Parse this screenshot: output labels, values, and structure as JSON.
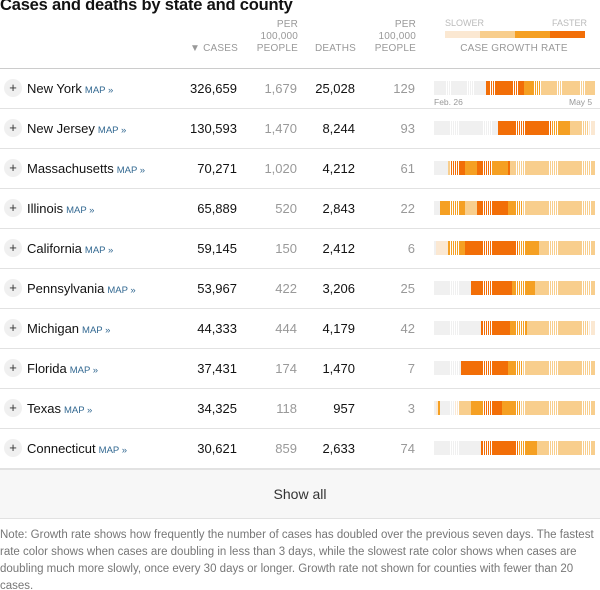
{
  "title": "Cases and deaths by state and county",
  "headers": {
    "cases": "▼ CASES",
    "per_100k_cases": [
      "PER",
      "100,000",
      "PEOPLE"
    ],
    "deaths": "DEATHS",
    "per_100k_deaths": [
      "PER",
      "100,000",
      "PEOPLE"
    ],
    "growth": "CASE GROWTH RATE",
    "slower": "SLOWER",
    "faster": "FASTER"
  },
  "colors": {
    "c0": "#f0f0f0",
    "c1": "#fbe8d2",
    "c2": "#f8ce8d",
    "c3": "#f5a023",
    "c4": "#f26e07",
    "c5": "#e8590c"
  },
  "legend_levels": [
    1,
    2,
    3,
    4
  ],
  "date_start": "Feb. 26",
  "date_end": "May 5",
  "map_label": "MAP »",
  "rows": [
    {
      "state": "New York",
      "cases": "326,659",
      "per1": "1,679",
      "deaths": "25,028",
      "per2": "129",
      "growth": "00000000000000000000000004444444444444444443333333322222222222222222222222222"
    },
    {
      "state": "New Jersey",
      "cases": "130,593",
      "per1": "1,470",
      "deaths": "8,244",
      "per2": "93",
      "growth": "000000000000000000000000000000044444444444444444444444444333333333222222222111"
    },
    {
      "state": "Massachusetts",
      "cases": "70,271",
      "per1": "1,020",
      "deaths": "4,212",
      "per2": "61",
      "growth": "000000024444444333333444444433333333422222222222222222222222222222222222222222"
    },
    {
      "state": "Illinois",
      "cases": "65,889",
      "per1": "520",
      "deaths": "2,843",
      "per2": "22",
      "growth": "000333333333333222222444444444444444333333322222222222222222222222222222222222"
    },
    {
      "state": "California",
      "cases": "59,145",
      "per1": "150",
      "deaths": "2,412",
      "per2": "6",
      "growth": "011111133333333444444444444444444444444443333333333222222222222222222222222222"
    },
    {
      "state": "Pennsylvania",
      "cases": "53,967",
      "per1": "422",
      "deaths": "3,206",
      "per2": "25",
      "growth": "000000000000000000444444444444444444443333333333322222222222222222222222222222"
    },
    {
      "state": "Michigan",
      "cases": "44,333",
      "per1": "444",
      "deaths": "4,179",
      "per2": "42",
      "growth": "000000000000000000000004444444444444433333333222222222222222222222222222222111"
    },
    {
      "state": "Florida",
      "cases": "37,431",
      "per1": "174",
      "deaths": "1,470",
      "per2": "7",
      "growth": "000000000000044444444444444444444444333333322222222222222222222222222222222222"
    },
    {
      "state": "Texas",
      "cases": "34,325",
      "per1": "118",
      "deaths": "957",
      "per2": "3",
      "growth": "013000000011222222333333444444444333333333222222222222222222222222222222222222"
    },
    {
      "state": "Connecticut",
      "cases": "30,621",
      "per1": "859",
      "deaths": "2,633",
      "per2": "74",
      "growth": "000000000000000000000004444444444444444443333333332222222222222222222222222222"
    }
  ],
  "show_all": "Show all",
  "note": "Note: Growth rate shows how frequently the number of cases has doubled over the previous seven days. The fastest rate color shows when cases are doubling in less than 3 days, while the slowest rate color shows when cases are doubling much more slowly, once every 30 days or longer. Growth rate not shown for counties with fewer than 20 cases."
}
